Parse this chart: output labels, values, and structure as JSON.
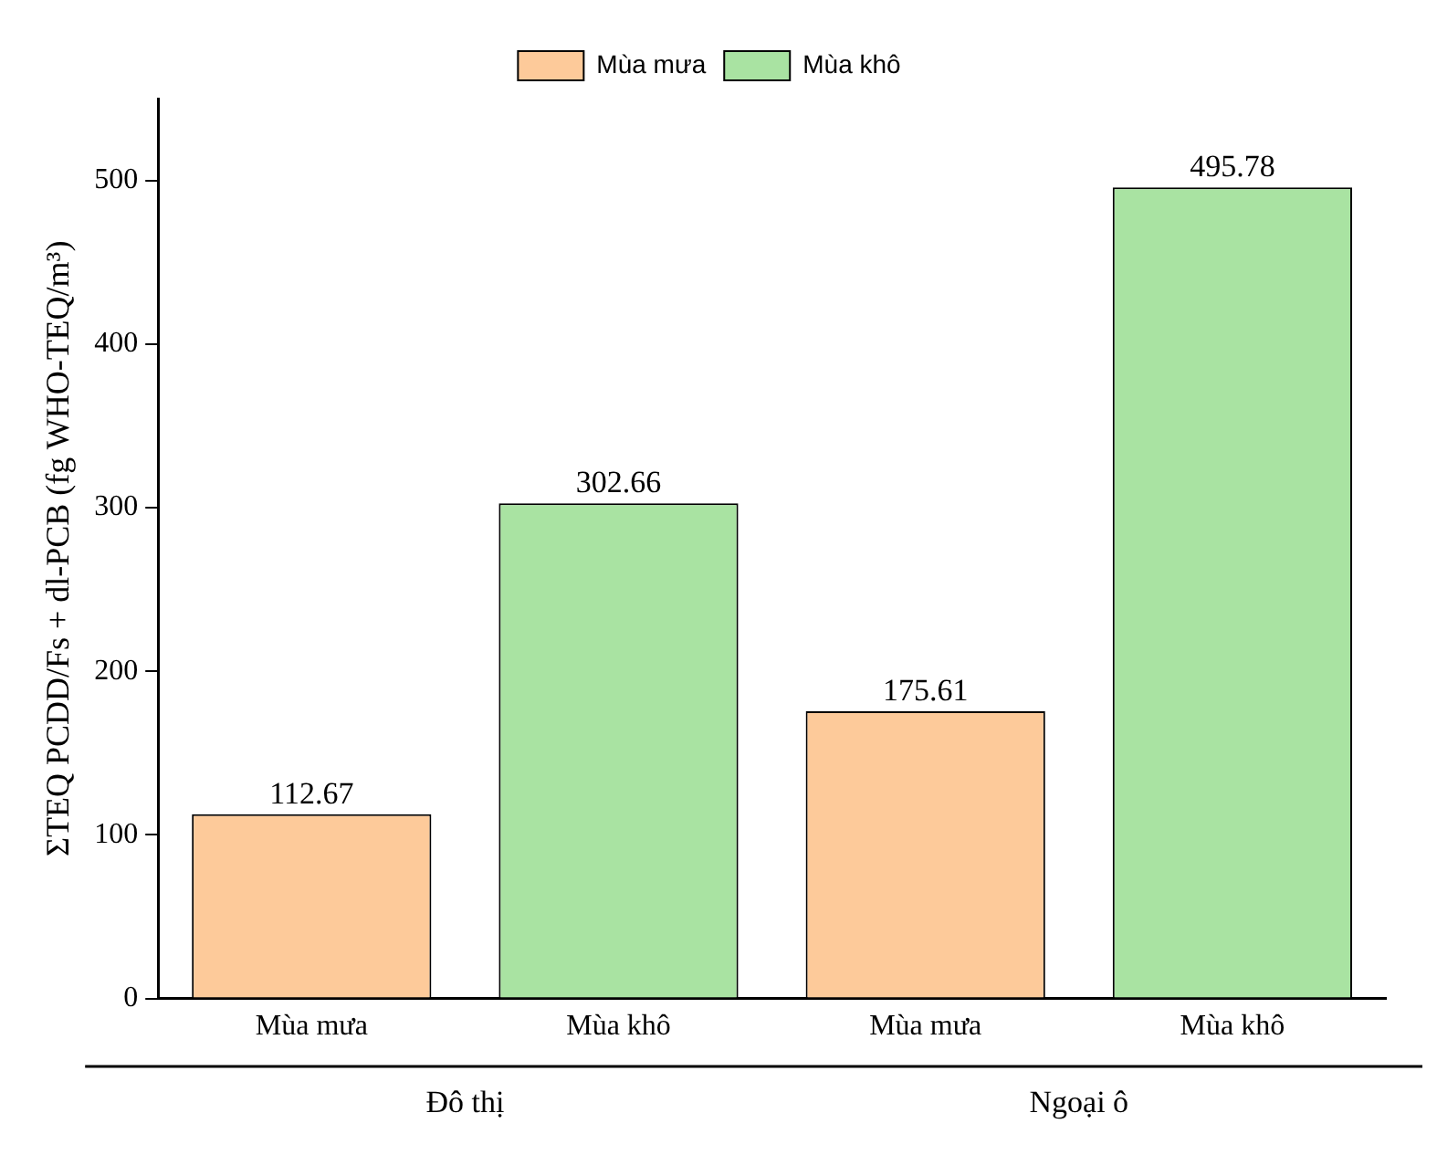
{
  "chart_data": {
    "type": "bar",
    "ylabel": "ΣTEQ PCDD/Fs + dl-PCB (fg WHO-TEQ/m³)",
    "categories": [
      "Mùa mưa",
      "Mùa khô",
      "Mùa mưa",
      "Mùa khô"
    ],
    "series": [
      {
        "name": "Mùa mưa",
        "color": "#fdca9a",
        "values": [
          112.67,
          null,
          175.61,
          null
        ]
      },
      {
        "name": "Mùa khô",
        "color": "#a9e3a2",
        "values": [
          null,
          302.66,
          null,
          495.78
        ]
      }
    ],
    "ylim": [
      0,
      550
    ],
    "yticks": [
      0,
      100,
      200,
      300,
      400,
      500
    ],
    "data_labels": true,
    "legend": "top",
    "grid": false,
    "annotations": [
      "Đô thị",
      "Ngoại ô"
    ]
  }
}
